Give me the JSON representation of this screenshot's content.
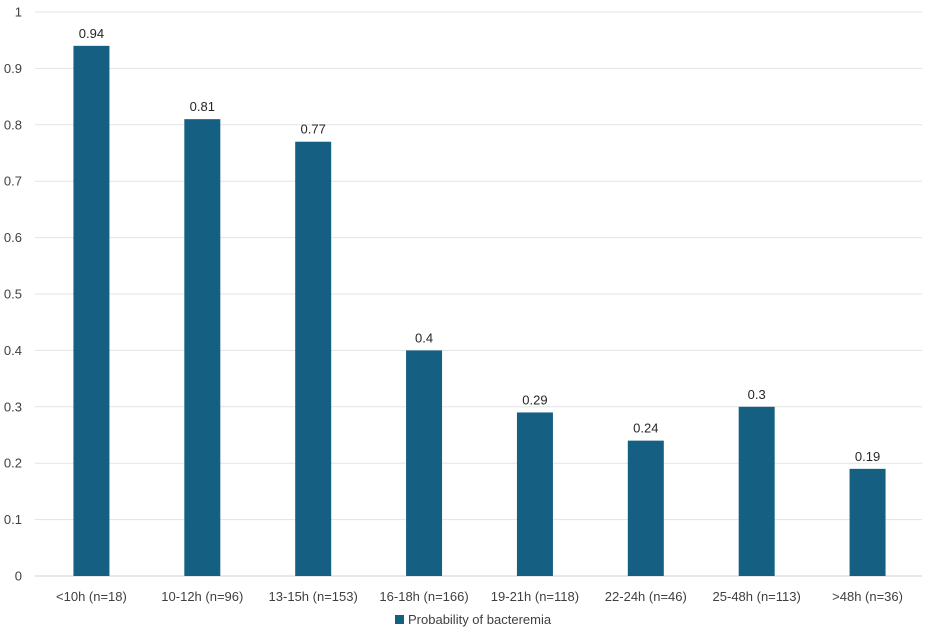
{
  "chart_data": {
    "type": "bar",
    "categories": [
      "<10h (n=18)",
      "10-12h (n=96)",
      "13-15h (n=153)",
      "16-18h (n=166)",
      "19-21h (n=118)",
      "22-24h (n=46)",
      "25-48h (n=113)",
      ">48h (n=36)"
    ],
    "series": [
      {
        "name": "Probability of bacteremia",
        "values": [
          0.94,
          0.81,
          0.77,
          0.4,
          0.29,
          0.24,
          0.3,
          0.19
        ],
        "color": "#156082"
      }
    ],
    "data_labels": [
      "0.94",
      "0.81",
      "0.77",
      "0.4",
      "0.29",
      "0.24",
      "0.3",
      "0.19"
    ],
    "title": "",
    "xlabel": "",
    "ylabel": "",
    "ylim": [
      0,
      1
    ],
    "yticks": [
      0,
      0.1,
      0.2,
      0.3,
      0.4,
      0.5,
      0.6,
      0.7,
      0.8,
      0.9,
      1
    ],
    "ytick_labels": [
      "0",
      "0.1",
      "0.2",
      "0.3",
      "0.4",
      "0.5",
      "0.6",
      "0.7",
      "0.8",
      "0.9",
      "1"
    ],
    "grid": true,
    "legend": {
      "placement": "bottom"
    }
  }
}
